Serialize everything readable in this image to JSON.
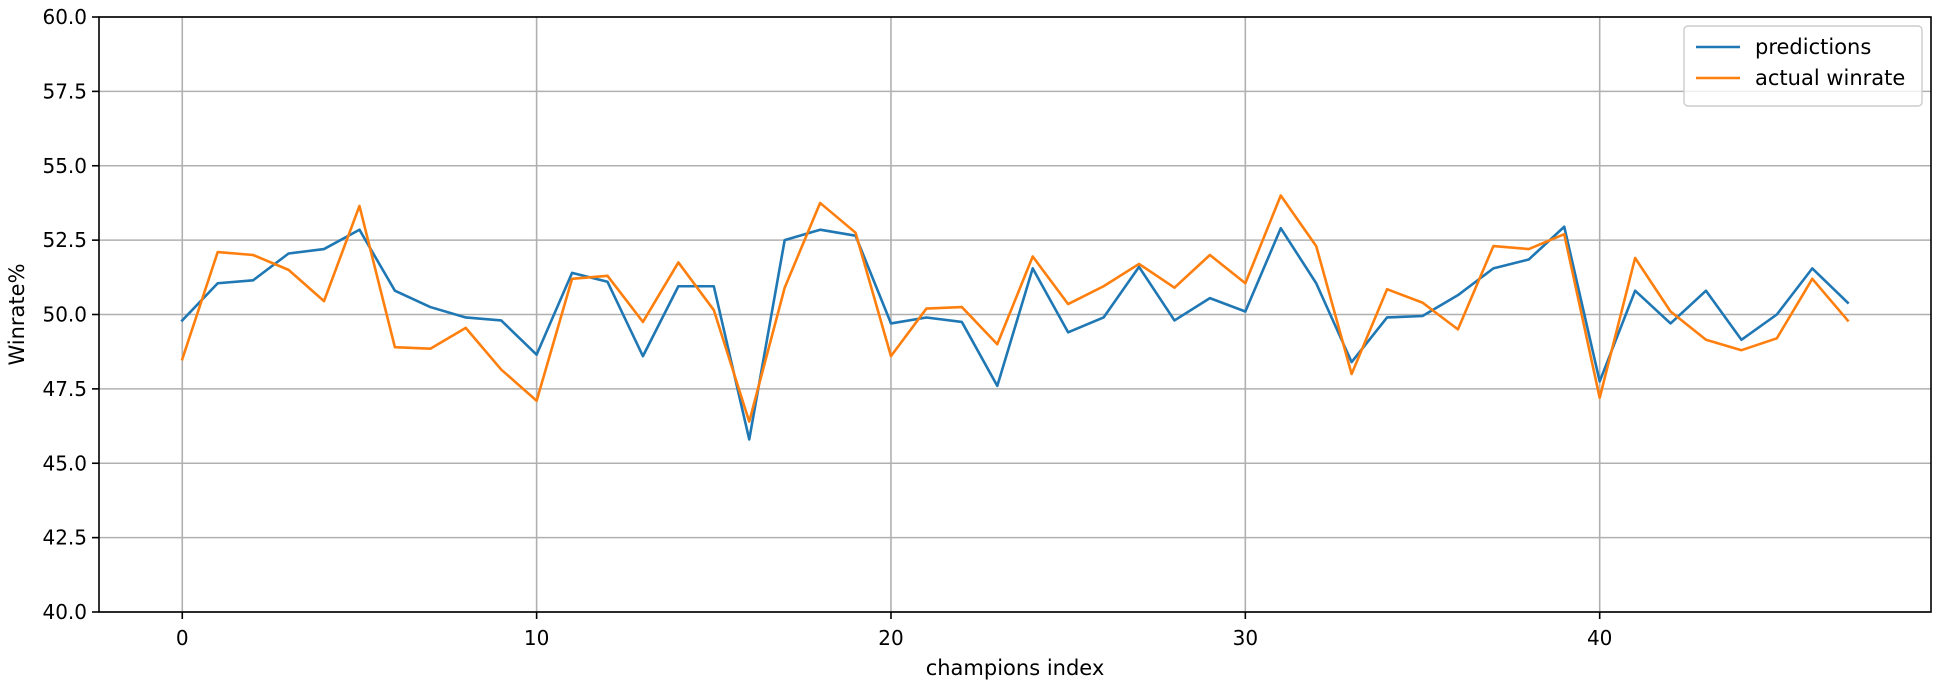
{
  "chart_data": {
    "type": "line",
    "title": "",
    "xlabel": "champions index",
    "ylabel": "Winrate%",
    "xlim": [
      -2.35,
      49.35
    ],
    "ylim": [
      40.0,
      60.0
    ],
    "xticks": [
      0,
      10,
      20,
      30,
      40
    ],
    "yticks": [
      40.0,
      42.5,
      45.0,
      47.5,
      50.0,
      52.5,
      55.0,
      57.5,
      60.0
    ],
    "grid": true,
    "legend_position": "top-right",
    "x": [
      0,
      1,
      2,
      3,
      4,
      5,
      6,
      7,
      8,
      9,
      10,
      11,
      12,
      13,
      14,
      15,
      16,
      17,
      18,
      19,
      20,
      21,
      22,
      23,
      24,
      25,
      26,
      27,
      28,
      29,
      30,
      31,
      32,
      33,
      34,
      35,
      36,
      37,
      38,
      39,
      40,
      41,
      42,
      43,
      44,
      45,
      46,
      47
    ],
    "series": [
      {
        "name": "predictions",
        "color": "#1f77b4",
        "values": [
          49.8,
          51.05,
          51.15,
          52.05,
          52.2,
          52.85,
          50.8,
          50.25,
          49.9,
          49.8,
          48.65,
          51.4,
          51.1,
          48.6,
          50.95,
          50.95,
          45.8,
          52.5,
          52.85,
          52.65,
          49.7,
          49.9,
          49.75,
          47.6,
          51.55,
          49.4,
          49.9,
          51.6,
          49.8,
          50.55,
          50.1,
          52.9,
          51.05,
          48.4,
          49.9,
          49.95,
          50.65,
          51.55,
          51.85,
          52.95,
          47.75,
          50.8,
          49.7,
          50.8,
          49.15,
          50.0,
          51.55,
          50.4
        ]
      },
      {
        "name": "actual winrate",
        "color": "#ff7f0e",
        "values": [
          48.5,
          52.1,
          52.0,
          51.5,
          50.45,
          53.65,
          48.9,
          48.85,
          49.55,
          48.15,
          47.1,
          51.2,
          51.3,
          49.75,
          51.75,
          50.15,
          46.4,
          50.9,
          53.75,
          52.75,
          48.6,
          50.2,
          50.25,
          49.0,
          51.95,
          50.35,
          50.95,
          51.7,
          50.9,
          52.0,
          51.05,
          54.0,
          52.3,
          48.0,
          50.85,
          50.4,
          49.5,
          52.3,
          52.2,
          52.7,
          47.2,
          51.9,
          50.1,
          49.15,
          48.8,
          49.2,
          51.2,
          49.8
        ]
      }
    ]
  }
}
